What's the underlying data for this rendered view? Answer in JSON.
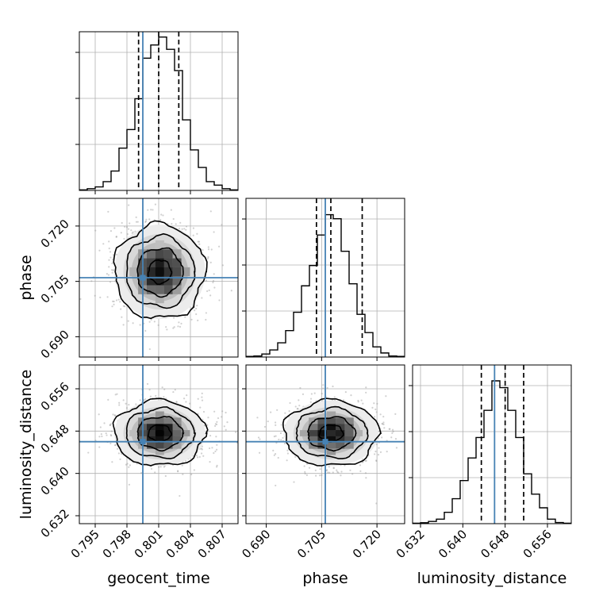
{
  "colors": {
    "truth": "#4682b4",
    "hist": "#000000",
    "grid": "#b0b0b0",
    "scatter": "#9a9a9a"
  },
  "chart_data": {
    "type": "corner",
    "grid": true,
    "parameters": [
      {
        "name": "geocent_time",
        "label": "geocent_time",
        "range": [
          0.7935,
          0.8085
        ],
        "ticks": [
          "0.795",
          "0.798",
          "0.801",
          "0.804",
          "0.807"
        ],
        "tick_values": [
          0.795,
          0.798,
          0.801,
          0.804,
          0.807
        ],
        "truth": 0.7995,
        "quantiles": [
          0.7991,
          0.801,
          0.8029
        ]
      },
      {
        "name": "phase",
        "label": "phase",
        "range": [
          0.6845,
          0.7275
        ],
        "ticks": [
          "0.690",
          "0.705",
          "0.720"
        ],
        "tick_values": [
          0.69,
          0.705,
          0.72
        ],
        "truth": 0.706,
        "quantiles": [
          0.7036,
          0.7075,
          0.716
        ]
      },
      {
        "name": "luminosity_distance",
        "label": "luminosity_distance",
        "range": [
          0.6305,
          0.6605
        ],
        "ticks": [
          "0.632",
          "0.640",
          "0.648",
          "0.656"
        ],
        "tick_values": [
          0.632,
          0.64,
          0.648,
          0.656
        ],
        "truth": 0.646,
        "quantiles": [
          0.6435,
          0.648,
          0.6515
        ]
      }
    ],
    "histograms": [
      {
        "param": "geocent_time",
        "bin_edges": [
          0.7935,
          0.79425,
          0.795,
          0.79575,
          0.7965,
          0.79725,
          0.798,
          0.79875,
          0.7995,
          0.80025,
          0.801,
          0.80175,
          0.8025,
          0.80325,
          0.804,
          0.80475,
          0.8055,
          0.80625,
          0.807,
          0.80775,
          0.8085
        ],
        "counts": [
          0.3,
          1.0,
          2.0,
          5.0,
          11.0,
          24.0,
          34.5,
          52.0,
          75.0,
          82.5,
          87.0,
          80.0,
          68.0,
          40.0,
          23.0,
          13.0,
          5.0,
          3.0,
          1.0,
          0.3
        ],
        "ylim": [
          0,
          90
        ]
      },
      {
        "param": "phase",
        "bin_edges": [
          0.6845,
          0.68665,
          0.6888,
          0.69095,
          0.6931,
          0.69525,
          0.6974,
          0.69955,
          0.7017,
          0.70385,
          0.706,
          0.70815,
          0.7103,
          0.71245,
          0.7146,
          0.71675,
          0.7189,
          0.72105,
          0.7232,
          0.72535,
          0.7275
        ],
        "counts": [
          0.3,
          0.5,
          1.5,
          3.5,
          7.0,
          13.0,
          22.0,
          35.0,
          45.0,
          60.0,
          70.0,
          68.0,
          52.0,
          36.0,
          21.0,
          12.0,
          5.0,
          2.0,
          0.5,
          0.3
        ],
        "ylim": [
          0,
          78
        ]
      },
      {
        "param": "luminosity_distance",
        "bin_edges": [
          0.6305,
          0.632,
          0.6335,
          0.635,
          0.6365,
          0.638,
          0.6395,
          0.641,
          0.6425,
          0.644,
          0.6455,
          0.647,
          0.6485,
          0.65,
          0.6515,
          0.653,
          0.6545,
          0.656,
          0.6575,
          0.659,
          0.6605
        ],
        "counts": [
          0.2,
          0.4,
          1.0,
          2.0,
          5.0,
          11.0,
          19.0,
          29.0,
          38.0,
          50.0,
          63.0,
          60.0,
          50.0,
          38.0,
          22.0,
          13.0,
          7.0,
          2.0,
          0.5,
          0.2
        ],
        "ylim": [
          0,
          70
        ]
      }
    ],
    "pairs": [
      {
        "x": "geocent_time",
        "y": "phase",
        "center": [
          0.8011,
          0.7076
        ],
        "sigma": [
          0.00215,
          0.0064
        ],
        "levels": [
          0.5,
          1.0,
          1.5,
          2.0
        ]
      },
      {
        "x": "geocent_time",
        "y": "luminosity_distance",
        "center": [
          0.8011,
          0.6476
        ],
        "sigma": [
          0.00215,
          0.0031
        ],
        "levels": [
          0.5,
          1.0,
          1.5,
          2.0
        ]
      },
      {
        "x": "phase",
        "y": "luminosity_distance",
        "center": [
          0.7076,
          0.6476
        ],
        "sigma": [
          0.0064,
          0.0031
        ],
        "levels": [
          0.5,
          1.0,
          1.5,
          2.0
        ]
      }
    ]
  }
}
